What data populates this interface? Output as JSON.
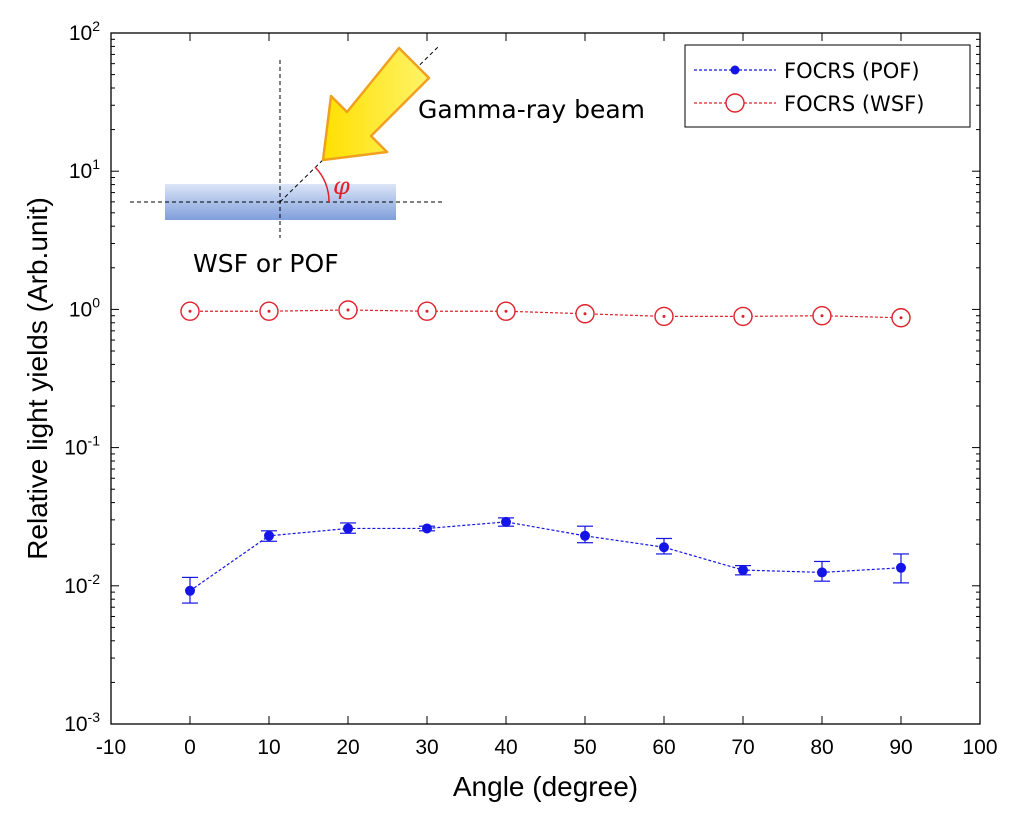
{
  "chart_data": {
    "type": "line",
    "title": "",
    "xlabel": "Angle (degree)",
    "ylabel": "Relative light yields (Arb.unit)",
    "xlim": [
      -10,
      100
    ],
    "ylim_log10": [
      -3,
      2
    ],
    "y_scale": "log",
    "x_ticks": [
      "-10",
      "0",
      "10",
      "20",
      "30",
      "40",
      "50",
      "60",
      "70",
      "80",
      "90",
      "100"
    ],
    "y_ticks": [
      {
        "base": "10",
        "exp": "-3"
      },
      {
        "base": "10",
        "exp": "-2"
      },
      {
        "base": "10",
        "exp": "-1"
      },
      {
        "base": "10",
        "exp": "0"
      },
      {
        "base": "10",
        "exp": "1"
      },
      {
        "base": "10",
        "exp": "2"
      }
    ],
    "legend_position": "top-right",
    "series": [
      {
        "name": "FOCRS (POF)",
        "color": "#1414e6",
        "marker": "filled-dot",
        "x": [
          0,
          10,
          20,
          30,
          40,
          50,
          60,
          70,
          80,
          90
        ],
        "y": [
          0.0092,
          0.023,
          0.026,
          0.026,
          0.029,
          0.023,
          0.019,
          0.013,
          0.0125,
          0.0135
        ],
        "y_err_low": [
          0.0075,
          0.021,
          0.024,
          0.025,
          0.027,
          0.0205,
          0.017,
          0.012,
          0.0108,
          0.0105
        ],
        "y_err_high": [
          0.0115,
          0.025,
          0.0285,
          0.027,
          0.031,
          0.027,
          0.022,
          0.014,
          0.015,
          0.017
        ]
      },
      {
        "name": "FOCRS (WSF)",
        "color": "#e0202a",
        "marker": "open-circle",
        "x": [
          0,
          10,
          20,
          30,
          40,
          50,
          60,
          70,
          80,
          90
        ],
        "y": [
          0.97,
          0.97,
          0.99,
          0.97,
          0.97,
          0.93,
          0.89,
          0.89,
          0.9,
          0.87
        ],
        "y_err_low": [
          0.95,
          0.95,
          0.97,
          0.95,
          0.95,
          0.91,
          0.87,
          0.87,
          0.88,
          0.85
        ],
        "y_err_high": [
          0.99,
          0.99,
          1.01,
          0.99,
          0.99,
          0.95,
          0.91,
          0.91,
          0.92,
          0.89
        ]
      }
    ],
    "annotations": {
      "beam_label": "Gamma-ray beam",
      "fiber_label": "WSF or POF",
      "angle_symbol": "φ"
    }
  }
}
